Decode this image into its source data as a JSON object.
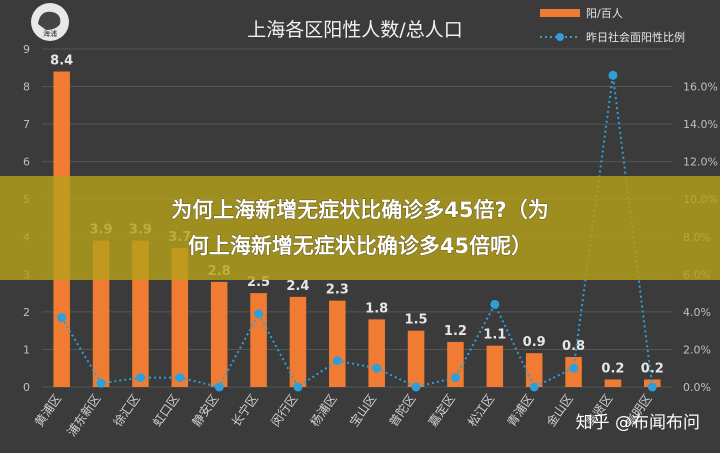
{
  "banner": {
    "line1": "为何上海新增无症状比确诊多45倍?（为",
    "line2": "何上海新增无症状比确诊多45倍呢）"
  },
  "watermark": "知乎 @布闻布问",
  "logo": {
    "text": "海浦"
  },
  "colors": {
    "bar": "#f07c33",
    "line": "#2e9fd9",
    "background": "#3b3b3b",
    "banner": "#b4a01a"
  },
  "chart_data": {
    "type": "bar",
    "title": "上海各区阳性人数/总人口",
    "categories": [
      "黄浦区",
      "浦东新区",
      "徐汇区",
      "虹口区",
      "静安区",
      "长宁区",
      "闵行区",
      "杨浦区",
      "宝山区",
      "普陀区",
      "嘉定区",
      "松江区",
      "青浦区",
      "金山区",
      "奉贤区",
      "崇明区"
    ],
    "series": [
      {
        "name": "阳/百人",
        "type": "bar",
        "axis": "left",
        "values": [
          8.4,
          3.9,
          3.9,
          3.7,
          2.8,
          2.5,
          2.4,
          2.3,
          1.8,
          1.5,
          1.2,
          1.1,
          0.9,
          0.8,
          0.2,
          0.2
        ]
      },
      {
        "name": "昨日社会面阳性比例",
        "type": "line",
        "axis": "right",
        "values": [
          0.037,
          0.002,
          0.005,
          0.005,
          0.0,
          0.039,
          0.0,
          0.014,
          0.01,
          0.0,
          0.005,
          0.044,
          0.0,
          0.01,
          0.166,
          0.0
        ]
      }
    ],
    "data_labels": [
      "8.4",
      "3.9",
      "3.9",
      "3.7",
      "2.8",
      "2.5",
      "2.4",
      "2.3",
      "1.8",
      "1.5",
      "1.2",
      "1.1",
      "0.9",
      "0.8",
      "0.2",
      "0.2"
    ],
    "y_left": {
      "min": 0,
      "max": 9,
      "ticks": [
        "0",
        "1",
        "2",
        "3",
        "4",
        "5",
        "6",
        "7",
        "8",
        "9"
      ]
    },
    "y_right": {
      "min": 0,
      "max": 0.18,
      "ticks": [
        "0.0%",
        "2.0%",
        "4.0%",
        "6.0%",
        "8.0%",
        "10.0%",
        "12.0%",
        "14.0%",
        "16.0%",
        ""
      ]
    },
    "grid": true,
    "legend": "top-right"
  }
}
